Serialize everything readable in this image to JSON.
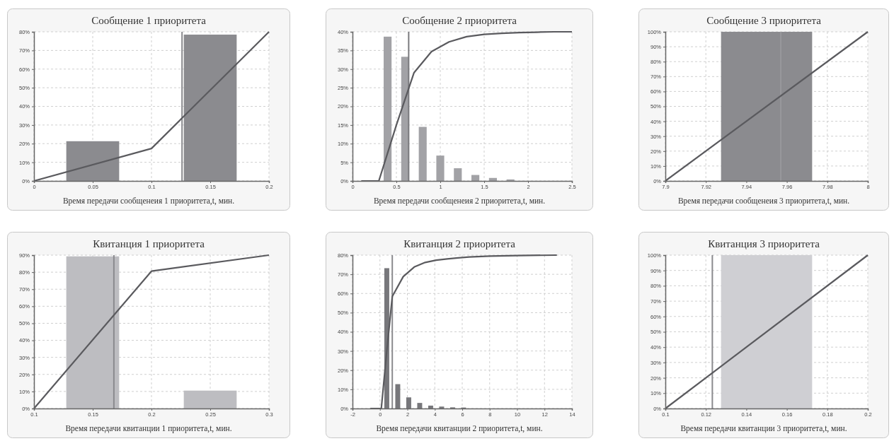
{
  "chart_data": [
    {
      "type": "histogram",
      "title": "Сообщение 1 приоритета",
      "xlabel": "Время передачи сообщенеия 1 приоритета,t, мин.",
      "xlim": [
        0,
        0.2
      ],
      "xticks": [
        0,
        0.05,
        0.1,
        0.15,
        0.2
      ],
      "ylim": [
        0,
        80
      ],
      "yticks": [
        {
          "value": 0,
          "label": "0%"
        },
        {
          "value": 10,
          "label": "10%"
        },
        {
          "value": 20,
          "label": "20%"
        },
        {
          "value": 30,
          "label": "30%"
        },
        {
          "value": 40,
          "label": "40%"
        },
        {
          "value": 50,
          "label": "50%"
        },
        {
          "value": 60,
          "label": "60%"
        },
        {
          "value": 70,
          "label": "70%"
        },
        {
          "value": 80,
          "label": "80%"
        }
      ],
      "grid": true,
      "series": [
        {
          "color": "#8b8b8f",
          "bins": [
            0,
            0.1,
            0.2
          ],
          "values": [
            21.3,
            78.5
          ]
        },
        {
          "type": "line",
          "color": "#5a5a5e",
          "x": [
            0,
            0.1,
            0.2
          ],
          "values": [
            0,
            17.4,
            80
          ]
        }
      ],
      "ref_lines": [
        {
          "axis": "x",
          "value": 0.126,
          "color": "#8a8a8e"
        }
      ]
    },
    {
      "type": "histogram",
      "title": "Сообщение 2 приоритета",
      "xlabel": "Время передачи сообщенеия 2 приоритета,t, мин.",
      "xlim": [
        0,
        2.5
      ],
      "xticks": [
        0,
        0.5,
        1,
        1.5,
        2,
        2.5
      ],
      "ylim": [
        0,
        40
      ],
      "yticks": [
        {
          "value": 0,
          "label": "0%"
        },
        {
          "value": 5,
          "label": "5%"
        },
        {
          "value": 10,
          "label": "10%"
        },
        {
          "value": 15,
          "label": "15%"
        },
        {
          "value": 20,
          "label": "20%"
        },
        {
          "value": 25,
          "label": "25%"
        },
        {
          "value": 30,
          "label": "30%"
        },
        {
          "value": 35,
          "label": "35%"
        },
        {
          "value": 40,
          "label": "40%"
        }
      ],
      "grid": true,
      "series": [
        {
          "color": "#a2a2a6",
          "bins": [
            0.3,
            0.5,
            0.7,
            0.9,
            1.1,
            1.3,
            1.5,
            1.7,
            1.9
          ],
          "values": [
            38.7,
            33.3,
            14.5,
            6.8,
            3.4,
            1.6,
            0.8,
            0.4
          ]
        },
        {
          "type": "line",
          "color": "#5a5a5e",
          "x": [
            0.1,
            0.3,
            0.5,
            0.7,
            0.9,
            1.1,
            1.3,
            1.5,
            1.7,
            1.9,
            2.1,
            2.3,
            2.5
          ],
          "values": [
            0,
            0,
            15,
            29,
            34.7,
            37.3,
            38.7,
            39.3,
            39.6,
            39.8,
            39.9,
            40,
            40
          ]
        }
      ],
      "ref_lines": [
        {
          "axis": "x",
          "value": 0.64,
          "color": "#7a7a7e"
        }
      ]
    },
    {
      "type": "histogram",
      "title": "Сообщение 3 приоритета",
      "xlabel": "Время передачи сообщенеия 3 приоритета,t, мин.",
      "xlim": [
        7.9,
        8
      ],
      "xticks": [
        7.9,
        7.92,
        7.94,
        7.96,
        7.98,
        8
      ],
      "ylim": [
        0,
        100
      ],
      "yticks": [
        {
          "value": 0,
          "label": "0%"
        },
        {
          "value": 10,
          "label": "10%"
        },
        {
          "value": 20,
          "label": "20%"
        },
        {
          "value": 30,
          "label": "30%"
        },
        {
          "value": 40,
          "label": "40%"
        },
        {
          "value": 50,
          "label": "50%"
        },
        {
          "value": 60,
          "label": "60%"
        },
        {
          "value": 70,
          "label": "70%"
        },
        {
          "value": 80,
          "label": "80%"
        },
        {
          "value": 90,
          "label": "90%"
        },
        {
          "value": 100,
          "label": "100%"
        }
      ],
      "grid": true,
      "series": [
        {
          "color": "#8b8b8f",
          "bins": [
            7.9,
            8
          ],
          "values": [
            100
          ]
        },
        {
          "type": "line",
          "color": "#5a5a5e",
          "x": [
            7.9,
            8
          ],
          "values": [
            0,
            100
          ]
        }
      ],
      "ref_lines": [
        {
          "axis": "x",
          "value": 7.957,
          "color": "#97979b"
        }
      ]
    },
    {
      "type": "histogram",
      "title": "Квитанция 1 приоритета",
      "xlabel": "Время передачи квитанции 1 приоритета,t, мин.",
      "xlim": [
        0.1,
        0.3
      ],
      "xticks": [
        0.1,
        0.15,
        0.2,
        0.25,
        0.3
      ],
      "ylim": [
        0,
        90
      ],
      "yticks": [
        {
          "value": 0,
          "label": "0%"
        },
        {
          "value": 10,
          "label": "10%"
        },
        {
          "value": 20,
          "label": "20%"
        },
        {
          "value": 30,
          "label": "30%"
        },
        {
          "value": 40,
          "label": "40%"
        },
        {
          "value": 50,
          "label": "50%"
        },
        {
          "value": 60,
          "label": "60%"
        },
        {
          "value": 70,
          "label": "70%"
        },
        {
          "value": 80,
          "label": "80%"
        },
        {
          "value": 90,
          "label": "90%"
        }
      ],
      "grid": true,
      "series": [
        {
          "color": "#bdbdc1",
          "bins": [
            0.1,
            0.2,
            0.3
          ],
          "values": [
            89.3,
            10.5
          ]
        },
        {
          "type": "line",
          "color": "#5a5a5e",
          "x": [
            0.1,
            0.2,
            0.3
          ],
          "values": [
            0,
            80.6,
            90
          ]
        }
      ],
      "ref_lines": [
        {
          "axis": "x",
          "value": 0.168,
          "color": "#8a8a8e"
        }
      ]
    },
    {
      "type": "histogram",
      "title": "Квитанция 2 приоритета",
      "xlabel": "Время передачи квитанции 2 приоритета,t, мин.",
      "xlim": [
        -2,
        14
      ],
      "xticks": [
        -2,
        0,
        2,
        4,
        6,
        8,
        10,
        12,
        14
      ],
      "ylim": [
        0,
        80
      ],
      "yticks": [
        {
          "value": 0,
          "label": "0%"
        },
        {
          "value": 10,
          "label": "10%"
        },
        {
          "value": 20,
          "label": "20%"
        },
        {
          "value": 30,
          "label": "30%"
        },
        {
          "value": 40,
          "label": "40%"
        },
        {
          "value": 50,
          "label": "50%"
        },
        {
          "value": 60,
          "label": "60%"
        },
        {
          "value": 70,
          "label": "70%"
        },
        {
          "value": 80,
          "label": "80%"
        }
      ],
      "grid": true,
      "series": [
        {
          "color": "#77777b",
          "bins": [
            0.1,
            0.9,
            1.7,
            2.5,
            3.3,
            4.1,
            4.9,
            5.7,
            6.5
          ],
          "values": [
            73.2,
            12.7,
            5.8,
            2.9,
            1.5,
            1,
            0.6,
            0.5
          ]
        },
        {
          "type": "line",
          "color": "#5a5a5e",
          "x": [
            -0.7,
            0.1,
            0.5,
            0.9,
            1.7,
            2.5,
            3.3,
            4.1,
            4.9,
            5.7,
            6.5,
            8,
            10,
            12.9
          ],
          "values": [
            0,
            0,
            30,
            58.4,
            68.8,
            73.8,
            76.2,
            77.4,
            78,
            78.6,
            79,
            79.5,
            79.8,
            80
          ]
        }
      ],
      "ref_lines": [
        {
          "axis": "x",
          "value": 0.9,
          "color": "#8a8a8e"
        }
      ]
    },
    {
      "type": "histogram",
      "title": "Квитанция 3 приоритета",
      "xlabel": "Время передачи квитанции 3 приоритета,t, мин.",
      "xlim": [
        0.1,
        0.2
      ],
      "xticks": [
        0.1,
        0.12,
        0.14,
        0.16,
        0.18,
        0.2
      ],
      "ylim": [
        0,
        100
      ],
      "yticks": [
        {
          "value": 0,
          "label": "0%"
        },
        {
          "value": 10,
          "label": "10%"
        },
        {
          "value": 20,
          "label": "20%"
        },
        {
          "value": 30,
          "label": "30%"
        },
        {
          "value": 40,
          "label": "40%"
        },
        {
          "value": 50,
          "label": "50%"
        },
        {
          "value": 60,
          "label": "60%"
        },
        {
          "value": 70,
          "label": "70%"
        },
        {
          "value": 80,
          "label": "80%"
        },
        {
          "value": 90,
          "label": "90%"
        },
        {
          "value": 100,
          "label": "100%"
        }
      ],
      "grid": true,
      "series": [
        {
          "color": "#cfcfd3",
          "bins": [
            0.1,
            0.2
          ],
          "values": [
            100
          ]
        },
        {
          "type": "line",
          "color": "#5a5a5e",
          "x": [
            0.1,
            0.2
          ],
          "values": [
            0,
            100
          ]
        }
      ],
      "ref_lines": [
        {
          "axis": "x",
          "value": 0.1232,
          "color": "#8a8a8e"
        }
      ]
    }
  ]
}
